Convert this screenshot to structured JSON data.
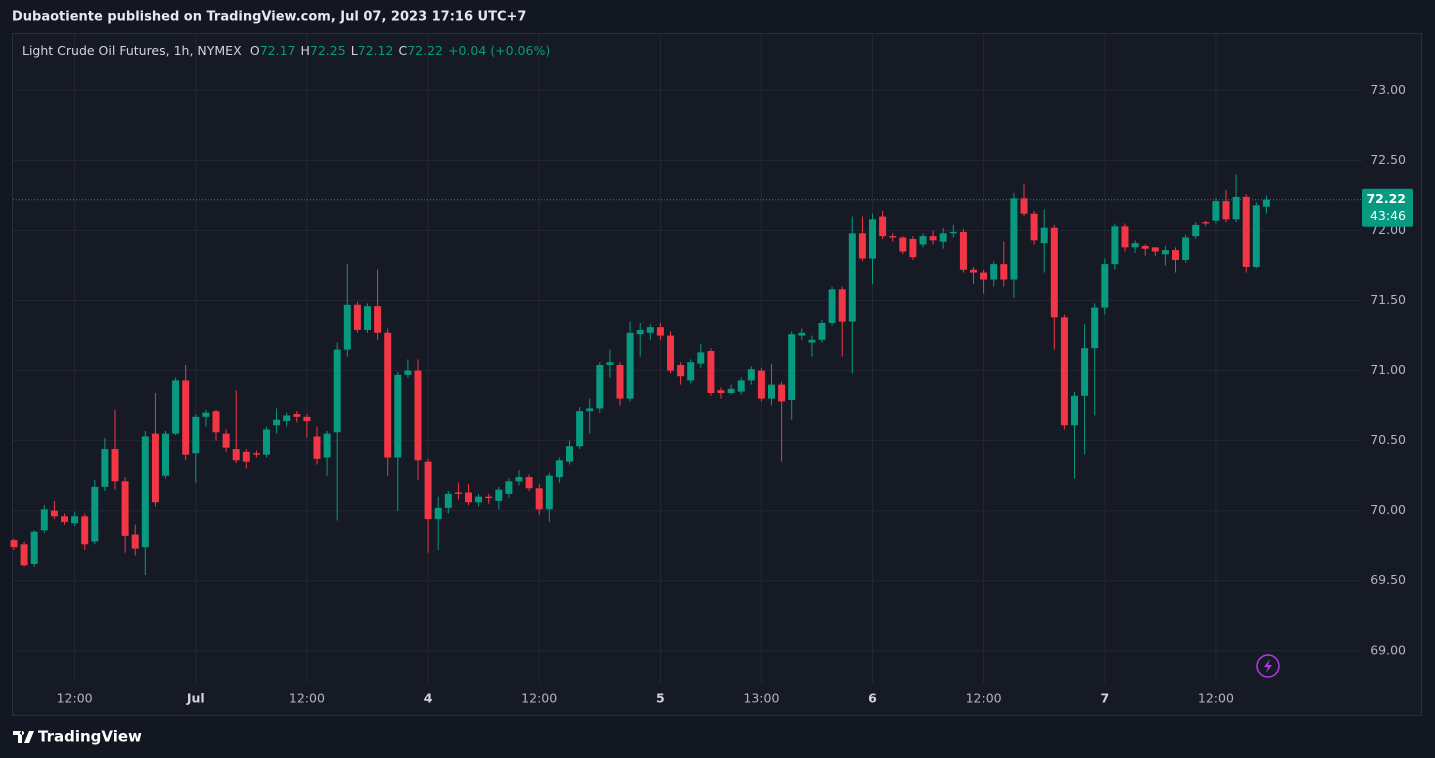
{
  "header": "Dubaotiente published on TradingView.com, Jul 07, 2023 17:16 UTC+7",
  "footer": "TradingView",
  "chart_data": {
    "type": "candlestick",
    "title": "Light Crude Oil Futures, 1h, NYMEX",
    "legend_labels": [
      "O",
      "H",
      "L",
      "C"
    ],
    "change": "+0.04 (+0.06%)",
    "countdown": "43:46",
    "up_color": "#089981",
    "down_color": "#f23645",
    "grid": true,
    "ylim": [
      68.77,
      73.41
    ],
    "yticks": [
      {
        "value": 69,
        "label": "69.00"
      },
      {
        "value": 69.5,
        "label": "69.50"
      },
      {
        "value": 70,
        "label": "70.00"
      },
      {
        "value": 70.5,
        "label": "70.50"
      },
      {
        "value": 71,
        "label": "71.00"
      },
      {
        "value": 71.5,
        "label": "71.50"
      },
      {
        "value": 72,
        "label": "72.00"
      },
      {
        "value": 72.5,
        "label": "72.50"
      },
      {
        "value": 73,
        "label": "73.00"
      }
    ],
    "categories": [
      null,
      null,
      null,
      null,
      null,
      null,
      "12:00",
      null,
      null,
      null,
      null,
      null,
      null,
      null,
      null,
      null,
      null,
      null,
      "Jul",
      null,
      null,
      null,
      null,
      null,
      null,
      null,
      null,
      null,
      null,
      "12:00",
      null,
      null,
      null,
      null,
      null,
      null,
      null,
      null,
      null,
      null,
      null,
      "4",
      null,
      null,
      null,
      null,
      null,
      null,
      null,
      null,
      null,
      null,
      "12:00",
      null,
      null,
      null,
      null,
      null,
      null,
      null,
      null,
      null,
      null,
      null,
      "5",
      null,
      null,
      null,
      null,
      null,
      null,
      null,
      null,
      null,
      "13:00",
      null,
      null,
      null,
      null,
      null,
      null,
      null,
      null,
      null,
      null,
      "6",
      null,
      null,
      null,
      null,
      null,
      null,
      null,
      null,
      null,
      null,
      "12:00",
      null,
      null,
      null,
      null,
      null,
      null,
      null,
      null,
      null,
      null,
      null,
      "7",
      null,
      null,
      null,
      null,
      null,
      null,
      null,
      null,
      null,
      null,
      "12:00",
      null,
      null,
      null,
      null,
      null
    ],
    "open": [
      69.79,
      69.76,
      69.62,
      69.86,
      70.0,
      69.96,
      69.91,
      69.96,
      69.78,
      70.17,
      70.44,
      70.21,
      69.83,
      69.74,
      70.55,
      70.25,
      70.55,
      70.93,
      70.41,
      70.67,
      70.71,
      70.55,
      70.44,
      70.42,
      70.41,
      70.4,
      70.61,
      70.64,
      70.69,
      70.67,
      70.53,
      70.38,
      70.56,
      71.15,
      71.47,
      71.29,
      71.46,
      71.27,
      70.38,
      70.97,
      71.0,
      70.35,
      69.94,
      70.02,
      70.13,
      70.13,
      70.06,
      70.1,
      70.07,
      70.12,
      70.21,
      70.24,
      70.16,
      70.01,
      70.24,
      70.35,
      70.46,
      70.71,
      70.73,
      71.04,
      71.04,
      70.8,
      71.26,
      71.27,
      71.31,
      71.25,
      71.04,
      70.93,
      71.05,
      71.14,
      70.86,
      70.84,
      70.85,
      70.93,
      71.0,
      70.8,
      70.9,
      70.79,
      71.25,
      71.2,
      71.22,
      71.34,
      71.58,
      71.35,
      71.98,
      71.8,
      72.1,
      71.96,
      71.95,
      71.94,
      71.9,
      71.96,
      71.92,
      71.98,
      71.99,
      71.72,
      71.7,
      71.65,
      71.76,
      71.65,
      72.23,
      72.12,
      71.91,
      72.02,
      71.38,
      70.61,
      70.82,
      71.16,
      71.45,
      71.76,
      72.03,
      71.88,
      71.89,
      71.88,
      71.83,
      71.86,
      71.79,
      71.96,
      72.06,
      72.07,
      72.21,
      72.08,
      72.24,
      71.74,
      72.17
    ],
    "high": [
      69.8,
      69.78,
      69.86,
      70.04,
      70.07,
      69.98,
      69.99,
      69.98,
      70.22,
      70.52,
      70.72,
      70.24,
      69.9,
      70.57,
      70.84,
      70.57,
      70.95,
      71.04,
      70.69,
      70.72,
      70.72,
      70.58,
      70.86,
      70.44,
      70.43,
      70.6,
      70.73,
      70.7,
      70.71,
      70.69,
      70.6,
      70.57,
      71.2,
      71.76,
      71.49,
      71.48,
      71.72,
      71.3,
      70.99,
      71.08,
      71.08,
      70.37,
      70.1,
      70.14,
      70.2,
      70.19,
      70.12,
      70.12,
      70.17,
      70.23,
      70.29,
      70.26,
      70.19,
      70.27,
      70.38,
      70.5,
      70.74,
      70.8,
      71.06,
      71.15,
      71.06,
      71.35,
      71.34,
      71.33,
      71.34,
      71.28,
      71.06,
      71.08,
      71.19,
      71.16,
      70.88,
      70.9,
      70.95,
      71.03,
      71.02,
      71.05,
      70.92,
      71.28,
      71.3,
      71.25,
      71.36,
      71.6,
      71.6,
      72.1,
      72.1,
      72.12,
      72.14,
      71.98,
      71.96,
      71.96,
      71.98,
      72.0,
      72.02,
      72.04,
      72.01,
      71.74,
      71.72,
      71.78,
      71.92,
      72.27,
      72.33,
      72.14,
      72.15,
      72.04,
      71.4,
      70.85,
      71.33,
      71.48,
      71.8,
      72.05,
      72.05,
      71.93,
      71.9,
      71.88,
      71.89,
      71.88,
      71.97,
      72.06,
      72.07,
      72.23,
      72.29,
      72.4,
      72.26,
      72.2,
      72.25
    ],
    "low": [
      69.72,
      69.6,
      69.6,
      69.84,
      69.94,
      69.9,
      69.89,
      69.72,
      69.76,
      70.14,
      70.15,
      69.7,
      69.68,
      69.54,
      70.03,
      70.23,
      70.54,
      70.36,
      70.2,
      70.6,
      70.5,
      70.42,
      70.34,
      70.3,
      70.38,
      70.38,
      70.55,
      70.6,
      70.63,
      70.52,
      70.33,
      70.25,
      69.93,
      71.1,
      71.27,
      71.27,
      71.22,
      70.25,
      70.0,
      70.95,
      70.22,
      69.7,
      69.72,
      69.98,
      70.08,
      70.04,
      70.03,
      70.05,
      70.01,
      70.09,
      70.18,
      70.14,
      69.97,
      69.92,
      70.2,
      70.33,
      70.44,
      70.55,
      70.7,
      70.95,
      70.75,
      70.78,
      71.1,
      71.22,
      71.22,
      70.98,
      70.9,
      70.91,
      71.02,
      70.82,
      70.8,
      70.83,
      70.83,
      70.9,
      70.78,
      70.75,
      70.35,
      70.65,
      71.22,
      71.1,
      71.2,
      71.32,
      71.1,
      70.98,
      71.78,
      71.62,
      71.94,
      71.92,
      71.83,
      71.79,
      71.88,
      71.9,
      71.87,
      71.95,
      71.7,
      71.62,
      71.55,
      71.6,
      71.6,
      71.52,
      72.1,
      71.9,
      71.7,
      71.15,
      70.58,
      70.23,
      70.4,
      70.68,
      71.4,
      71.72,
      71.85,
      71.84,
      71.82,
      71.82,
      71.75,
      71.7,
      71.77,
      71.94,
      72.03,
      72.05,
      72.06,
      72.06,
      71.7,
      71.73,
      72.12
    ],
    "close": [
      69.74,
      69.61,
      69.85,
      70.01,
      69.96,
      69.92,
      69.96,
      69.76,
      70.17,
      70.44,
      70.21,
      69.82,
      69.73,
      70.53,
      70.06,
      70.55,
      70.93,
      70.4,
      70.67,
      70.7,
      70.56,
      70.45,
      70.36,
      70.35,
      70.4,
      70.58,
      70.65,
      70.68,
      70.67,
      70.64,
      70.37,
      70.55,
      71.15,
      71.47,
      71.29,
      71.46,
      71.27,
      70.38,
      70.97,
      71.0,
      70.36,
      69.94,
      70.02,
      70.12,
      70.12,
      70.06,
      70.1,
      70.09,
      70.15,
      70.21,
      70.24,
      70.16,
      70.01,
      70.25,
      70.36,
      70.46,
      70.71,
      70.73,
      71.04,
      71.06,
      70.8,
      71.27,
      71.29,
      71.31,
      71.25,
      71.0,
      70.96,
      71.06,
      71.13,
      70.84,
      70.84,
      70.87,
      70.93,
      71.01,
      70.8,
      70.9,
      70.78,
      71.26,
      71.27,
      71.22,
      71.34,
      71.58,
      71.35,
      71.98,
      71.8,
      72.08,
      71.96,
      71.95,
      71.85,
      71.81,
      71.96,
      71.93,
      71.98,
      71.99,
      71.72,
      71.7,
      71.65,
      71.76,
      71.65,
      72.23,
      72.12,
      71.93,
      72.02,
      71.38,
      70.61,
      70.82,
      71.16,
      71.45,
      71.76,
      72.03,
      71.88,
      71.91,
      71.87,
      71.85,
      71.86,
      71.79,
      71.95,
      72.04,
      72.05,
      72.21,
      72.08,
      72.24,
      71.74,
      72.18,
      72.22
    ]
  }
}
